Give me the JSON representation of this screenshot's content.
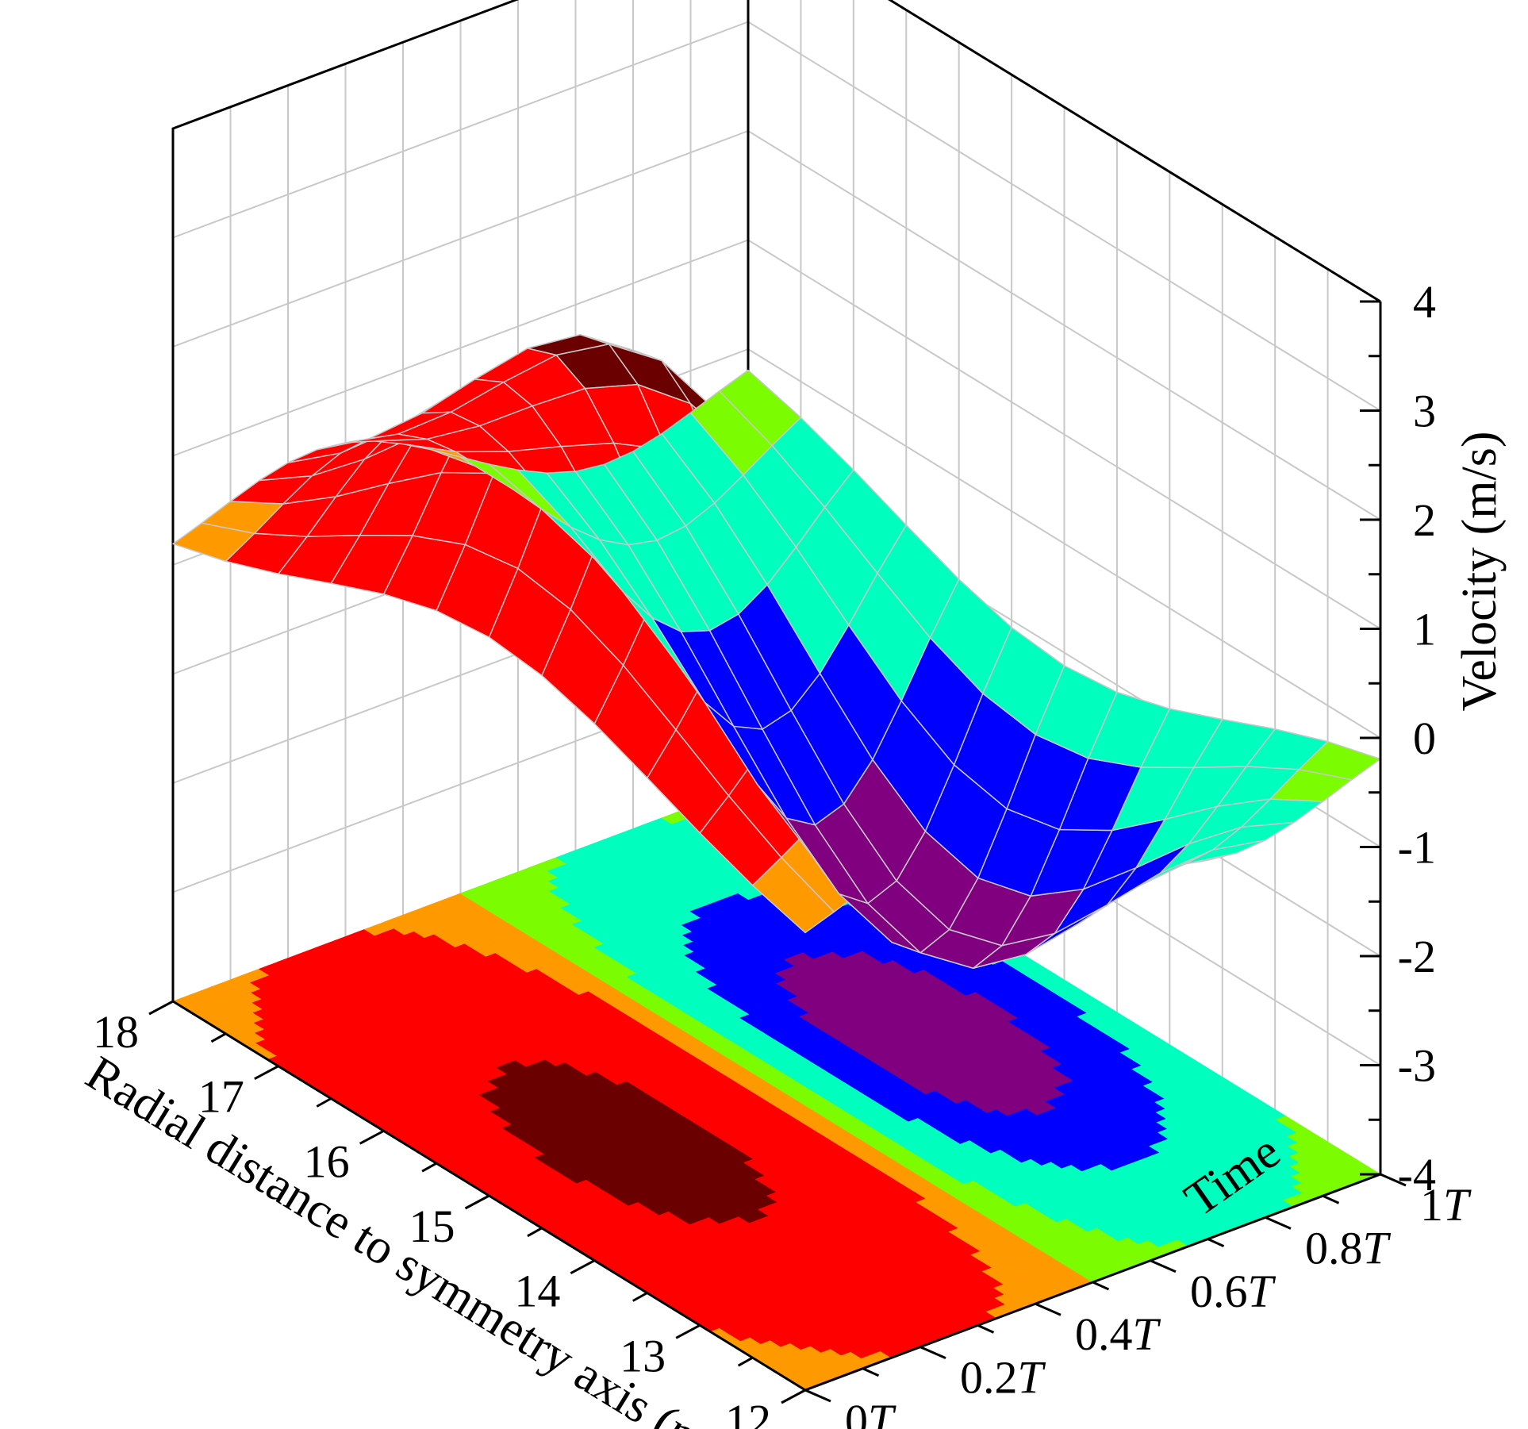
{
  "chart_data": {
    "type": "surface3d_with_contour",
    "x_axis": {
      "label": "Radial distance to symmetry axis (mm)",
      "ticks": [
        "18",
        "17",
        "16",
        "15",
        "14",
        "13",
        "12"
      ],
      "range": [
        12,
        18
      ]
    },
    "y_axis": {
      "label": "Time",
      "ticks": [
        "0T",
        "0.2T",
        "0.4T",
        "0.6T",
        "0.8T",
        "1T"
      ],
      "range": [
        0,
        1
      ]
    },
    "z_axis": {
      "label": "Velocity (m/s)",
      "ticks": [
        "-4",
        "-3",
        "-2",
        "-1",
        "0",
        "1",
        "2",
        "3",
        "4"
      ],
      "range": [
        -4,
        4
      ]
    },
    "grid": true,
    "features": [
      {
        "kind": "peak",
        "r_mm": 15.0,
        "t": 0.25,
        "velocity": 3.3
      },
      {
        "kind": "trough",
        "r_mm": 15.0,
        "t": 0.75,
        "velocity": -3.3
      }
    ],
    "contour_levels": [
      {
        "min": 2.5,
        "max": 4,
        "color": "#6b0000"
      },
      {
        "min": 0.5,
        "max": 2.5,
        "color": "#ff0000"
      },
      {
        "min": -0.5,
        "max": 0.5,
        "color_t_lt_half": "#ff9900",
        "color_t_ge_half": "#7cfc00"
      },
      {
        "min": -1.5,
        "max": -0.5,
        "color": "#00ffbf"
      },
      {
        "min": -2.5,
        "max": -1.5,
        "color": "#0000ff"
      },
      {
        "min": -4,
        "max": -2.5,
        "color": "#800080"
      }
    ],
    "grid_color": "#c8c8c8"
  }
}
